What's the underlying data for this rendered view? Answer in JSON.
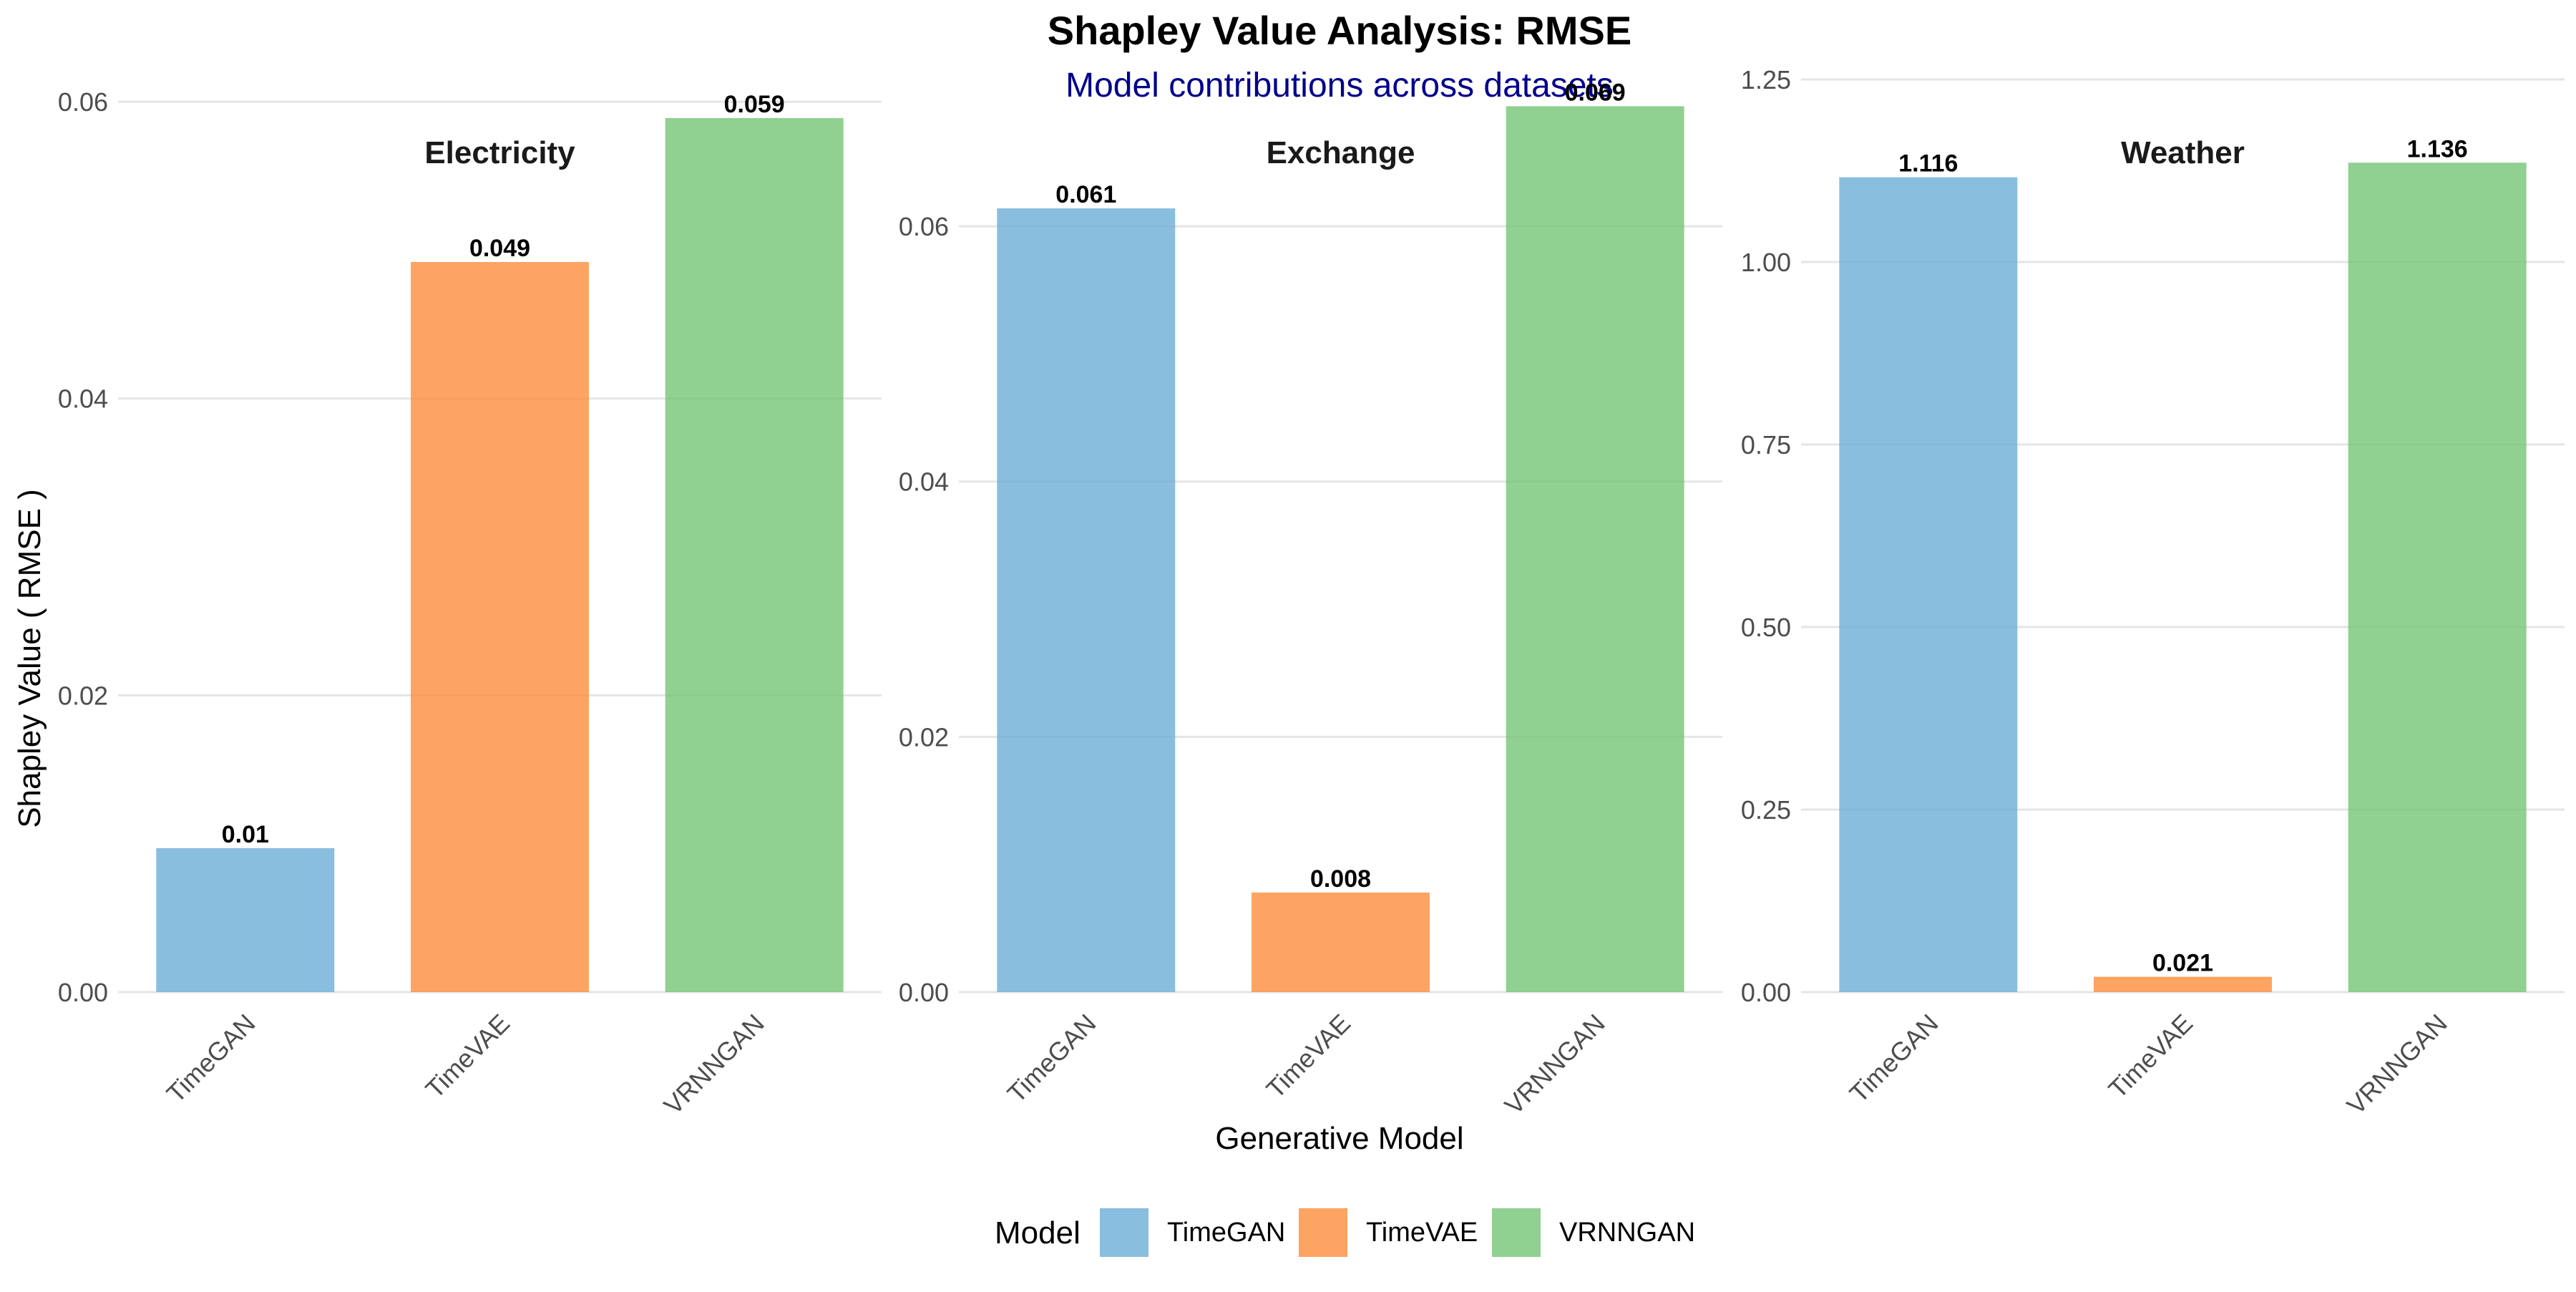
{
  "chart_data": {
    "type": "bar",
    "title": "Shapley Value Analysis: RMSE",
    "subtitle": "Model contributions across datasets",
    "xlabel": "Generative Model",
    "ylabel": "Shapley Value ( RMSE )",
    "grid": true,
    "legend": {
      "title": "Model",
      "position": "bottom",
      "entries": [
        {
          "name": "TimeGAN",
          "color": "#6BAED6"
        },
        {
          "name": "TimeVAE",
          "color": "#FD8D3C"
        },
        {
          "name": "VRNNGAN",
          "color": "#74C476"
        }
      ]
    },
    "colors": {
      "title": "#000000",
      "subtitle": "#00008B",
      "grid": "#E5E5E5",
      "axis_text": "#4D4D4D"
    },
    "panels": [
      {
        "facet": "Electricity",
        "categories": [
          "TimeGAN",
          "TimeVAE",
          "VRNNGAN"
        ],
        "values": [
          0.0097,
          0.0492,
          0.0589
        ],
        "labels": [
          "0.01",
          "0.049",
          "0.059"
        ],
        "ylim": [
          0,
          0.0615
        ],
        "yticks": [
          0,
          0.02,
          0.04,
          0.06
        ],
        "ytick_labels": [
          "0.00",
          "0.02",
          "0.04",
          "0.06"
        ]
      },
      {
        "facet": "Exchange",
        "categories": [
          "TimeGAN",
          "TimeVAE",
          "VRNNGAN"
        ],
        "values": [
          0.0614,
          0.0078,
          0.0694
        ],
        "labels": [
          "0.061",
          "0.008",
          "0.069"
        ],
        "ylim": [
          0,
          0.0715
        ],
        "yticks": [
          0,
          0.02,
          0.04,
          0.06
        ],
        "ytick_labels": [
          "0.00",
          "0.02",
          "0.04",
          "0.06"
        ]
      },
      {
        "facet": "Weather",
        "categories": [
          "TimeGAN",
          "TimeVAE",
          "VRNNGAN"
        ],
        "values": [
          1.116,
          0.021,
          1.136
        ],
        "labels": [
          "1.116",
          "0.021",
          "1.136"
        ],
        "ylim": [
          0,
          1.25
        ],
        "yticks": [
          0,
          0.25,
          0.5,
          0.75,
          1.0,
          1.25
        ],
        "ytick_labels": [
          "0.00",
          "0.25",
          "0.50",
          "0.75",
          "1.00",
          "1.25"
        ]
      }
    ]
  }
}
